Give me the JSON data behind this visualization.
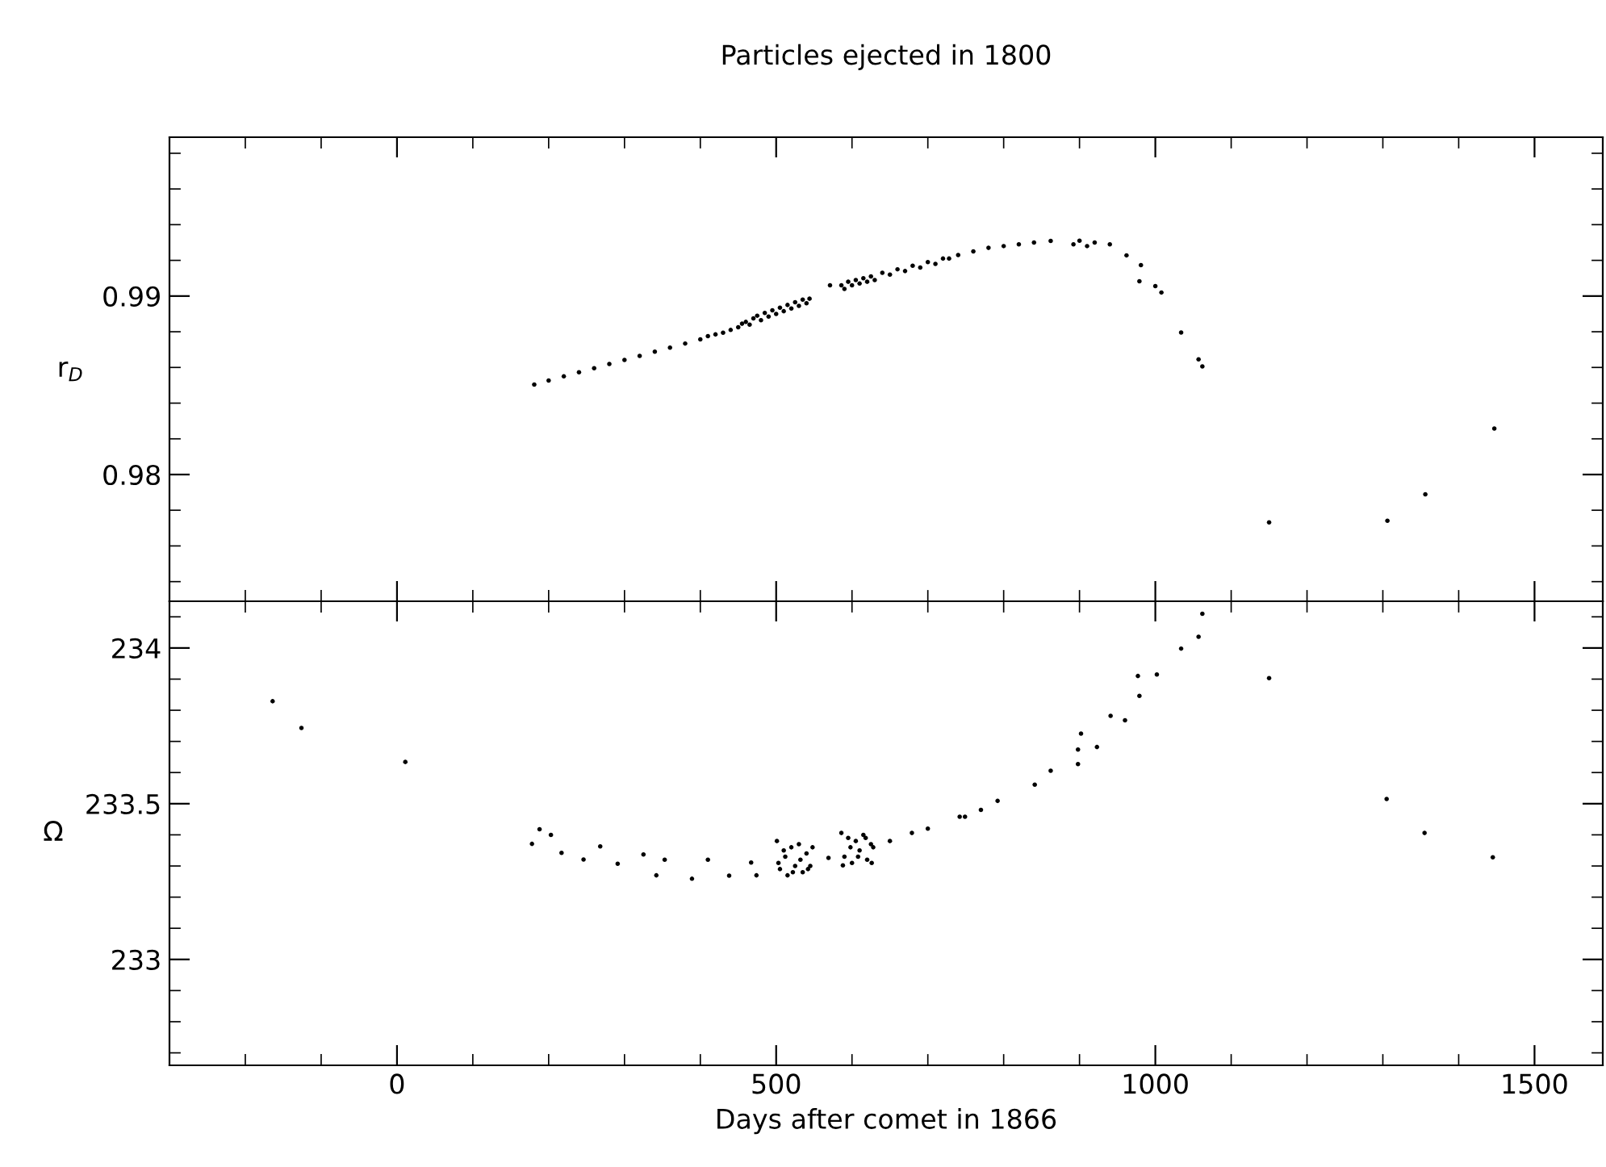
{
  "chart_data": [
    {
      "type": "scatter",
      "title": "Particles ejected in 1800",
      "ylabel": "r$_{D}$",
      "marker": "circle",
      "grid": false,
      "tick_labels": "y",
      "xlim": [
        -300,
        1590
      ],
      "ylim": [
        0.9729,
        0.9989
      ],
      "xticks": [
        {
          "value": -200,
          "label": null
        },
        {
          "value": -100,
          "label": null
        },
        0,
        {
          "value": 100,
          "label": null
        },
        {
          "value": 200,
          "label": null
        },
        {
          "value": 300,
          "label": null
        },
        {
          "value": 400,
          "label": null
        },
        500,
        {
          "value": 600,
          "label": null
        },
        {
          "value": 700,
          "label": null
        },
        {
          "value": 800,
          "label": null
        },
        {
          "value": 900,
          "label": null
        },
        1000,
        {
          "value": 1100,
          "label": null
        },
        {
          "value": 1200,
          "label": null
        },
        {
          "value": 1300,
          "label": null
        },
        {
          "value": 1400,
          "label": null
        },
        1500
      ],
      "yticks": [
        {
          "value": 0.974,
          "label": null
        },
        {
          "value": 0.976,
          "label": null
        },
        {
          "value": 0.978,
          "label": null
        },
        0.98,
        {
          "value": 0.982,
          "label": null
        },
        {
          "value": 0.984,
          "label": null
        },
        {
          "value": 0.986,
          "label": null
        },
        {
          "value": 0.988,
          "label": null
        },
        0.99,
        {
          "value": 0.992,
          "label": null
        },
        {
          "value": 0.994,
          "label": null
        },
        {
          "value": 0.996,
          "label": null
        },
        {
          "value": 0.998,
          "label": null
        }
      ],
      "series": [
        {
          "color": "#000000",
          "x": [
            181,
            200,
            220,
            240,
            260,
            280,
            300,
            320,
            340,
            360,
            380,
            400,
            410,
            420,
            430,
            440,
            450,
            455,
            460,
            465,
            470,
            475,
            480,
            485,
            490,
            495,
            500,
            505,
            510,
            515,
            520,
            525,
            530,
            535,
            540,
            544,
            571,
            586,
            590,
            595,
            600,
            605,
            610,
            615,
            620,
            625,
            630,
            640,
            650,
            660,
            670,
            680,
            690,
            700,
            710,
            720,
            728,
            740,
            760,
            780,
            800,
            820,
            840,
            862,
            892,
            900,
            910,
            920,
            940,
            962,
            981,
            979,
            1000,
            1008,
            1034,
            1057,
            1062,
            1150,
            1306,
            1356,
            1447
          ],
          "values": [
            0.98504,
            0.98527,
            0.9855,
            0.98573,
            0.98596,
            0.98619,
            0.98642,
            0.98665,
            0.98688,
            0.98711,
            0.98734,
            0.98757,
            0.98775,
            0.98785,
            0.98795,
            0.9881,
            0.98825,
            0.98845,
            0.98855,
            0.9884,
            0.98875,
            0.9889,
            0.98865,
            0.98905,
            0.98885,
            0.9892,
            0.989,
            0.98935,
            0.98915,
            0.9895,
            0.9893,
            0.98965,
            0.98945,
            0.9898,
            0.9896,
            0.98985,
            0.9906,
            0.9906,
            0.9904,
            0.9908,
            0.9906,
            0.9909,
            0.9907,
            0.991,
            0.9908,
            0.9911,
            0.9909,
            0.9913,
            0.9912,
            0.9915,
            0.9914,
            0.9917,
            0.9916,
            0.9919,
            0.9918,
            0.9921,
            0.9921,
            0.9923,
            0.9925,
            0.9927,
            0.9928,
            0.9929,
            0.993,
            0.99309,
            0.9929,
            0.9931,
            0.9928,
            0.993,
            0.9929,
            0.99228,
            0.99173,
            0.99083,
            0.99056,
            0.9902,
            0.98796,
            0.98645,
            0.98606,
            0.97732,
            0.97741,
            0.97889,
            0.98258
          ]
        }
      ]
    },
    {
      "type": "scatter",
      "xlabel": "Days after comet in 1866",
      "ylabel": "Ω",
      "marker": "circle",
      "grid": false,
      "xlim": [
        -300,
        1590
      ],
      "ylim": [
        232.66,
        234.15
      ],
      "xticks": [
        {
          "value": -200,
          "label": null
        },
        {
          "value": -100,
          "label": null
        },
        0,
        {
          "value": 100,
          "label": null
        },
        {
          "value": 200,
          "label": null
        },
        {
          "value": 300,
          "label": null
        },
        {
          "value": 400,
          "label": null
        },
        500,
        {
          "value": 600,
          "label": null
        },
        {
          "value": 700,
          "label": null
        },
        {
          "value": 800,
          "label": null
        },
        {
          "value": 900,
          "label": null
        },
        1000,
        {
          "value": 1100,
          "label": null
        },
        {
          "value": 1200,
          "label": null
        },
        {
          "value": 1300,
          "label": null
        },
        {
          "value": 1400,
          "label": null
        },
        1500
      ],
      "yticks": [
        {
          "value": 232.7,
          "label": null
        },
        {
          "value": 232.8,
          "label": null
        },
        {
          "value": 232.9,
          "label": null
        },
        233,
        {
          "value": 233.1,
          "label": null
        },
        {
          "value": 233.2,
          "label": null
        },
        {
          "value": 233.3,
          "label": null
        },
        {
          "value": 233.4,
          "label": null
        },
        233.5,
        {
          "value": 233.6,
          "label": null
        },
        {
          "value": 233.7,
          "label": null
        },
        {
          "value": 233.8,
          "label": null
        },
        {
          "value": 233.9,
          "label": null
        },
        234,
        {
          "value": 234.1,
          "label": null
        }
      ],
      "series": [
        {
          "color": "#000000",
          "x": [
            -164,
            -126,
            11,
            178,
            188,
            203,
            217,
            246,
            268,
            291,
            325,
            342,
            353,
            389,
            410,
            438,
            467,
            474,
            501,
            505,
            510,
            515,
            520,
            525,
            530,
            535,
            540,
            545,
            548,
            503,
            512,
            522,
            532,
            542,
            569,
            586,
            590,
            595,
            600,
            605,
            610,
            615,
            620,
            625,
            628,
            588,
            598,
            608,
            618,
            626,
            650,
            679,
            700,
            742,
            749,
            770,
            792,
            841,
            862,
            898,
            902,
            898,
            923,
            941,
            960,
            979,
            977,
            1002,
            1034,
            1057,
            1062,
            1150,
            1305,
            1355,
            1445
          ],
          "values": [
            233.829,
            233.743,
            233.634,
            233.371,
            233.418,
            233.4,
            233.342,
            233.321,
            233.363,
            233.307,
            233.337,
            233.27,
            233.32,
            233.259,
            233.32,
            233.269,
            233.311,
            233.27,
            233.38,
            233.29,
            233.35,
            233.27,
            233.36,
            233.3,
            233.37,
            233.28,
            233.34,
            233.3,
            233.36,
            233.31,
            233.33,
            233.28,
            233.32,
            233.29,
            233.326,
            233.406,
            233.33,
            233.39,
            233.31,
            233.38,
            233.35,
            233.4,
            233.32,
            233.37,
            233.36,
            233.302,
            233.36,
            233.33,
            233.39,
            233.31,
            233.38,
            233.406,
            233.42,
            233.458,
            233.458,
            233.48,
            233.509,
            233.561,
            233.606,
            233.674,
            233.725,
            233.627,
            233.682,
            233.782,
            233.768,
            233.846,
            233.91,
            233.915,
            233.998,
            234.036,
            234.11,
            233.903,
            233.515,
            233.406,
            233.328
          ]
        }
      ]
    }
  ]
}
